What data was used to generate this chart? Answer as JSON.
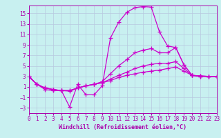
{
  "bg_color": "#c8f0f0",
  "line_color": "#cc00cc",
  "grid_color": "#b8c8e0",
  "xlabel": "Windchill (Refroidissement éolien,°C)",
  "xlabel_color": "#aa00aa",
  "tick_color": "#aa00aa",
  "x_ticks": [
    0,
    1,
    2,
    3,
    4,
    5,
    6,
    7,
    8,
    9,
    10,
    11,
    12,
    13,
    14,
    15,
    16,
    17,
    18,
    19,
    20,
    21,
    22,
    23
  ],
  "y_ticks": [
    -3,
    -1,
    1,
    3,
    5,
    7,
    9,
    11,
    13,
    15
  ],
  "xlim": [
    0,
    23
  ],
  "ylim": [
    -4.0,
    16.5
  ],
  "line1_y": [
    3.0,
    1.5,
    0.5,
    0.3,
    0.3,
    -2.8,
    1.5,
    -0.5,
    -0.5,
    1.2,
    10.3,
    13.3,
    15.2,
    16.1,
    16.3,
    16.2,
    11.5,
    8.8,
    8.5,
    5.2,
    3.2,
    3.1,
    3.0,
    3.0
  ],
  "line2_y": [
    3.0,
    1.5,
    0.8,
    0.5,
    0.3,
    0.2,
    0.8,
    1.2,
    1.5,
    2.0,
    3.5,
    5.0,
    6.2,
    7.5,
    8.0,
    8.3,
    7.5,
    7.5,
    8.5,
    5.2,
    3.2,
    3.1,
    3.0,
    3.0
  ],
  "line3_y": [
    3.0,
    1.5,
    0.8,
    0.5,
    0.3,
    0.3,
    0.8,
    1.2,
    1.5,
    1.8,
    2.5,
    3.2,
    3.8,
    4.5,
    5.0,
    5.3,
    5.5,
    5.5,
    5.8,
    4.5,
    3.2,
    3.0,
    3.0,
    3.0
  ],
  "line4_y": [
    3.0,
    1.5,
    0.8,
    0.5,
    0.3,
    0.3,
    0.8,
    1.2,
    1.5,
    1.8,
    2.2,
    2.8,
    3.2,
    3.5,
    3.8,
    4.0,
    4.2,
    4.5,
    4.8,
    4.0,
    3.2,
    3.0,
    3.0,
    3.0
  ],
  "font_family": "monospace",
  "tick_fontsize": 5.5,
  "xlabel_fontsize": 6.0
}
